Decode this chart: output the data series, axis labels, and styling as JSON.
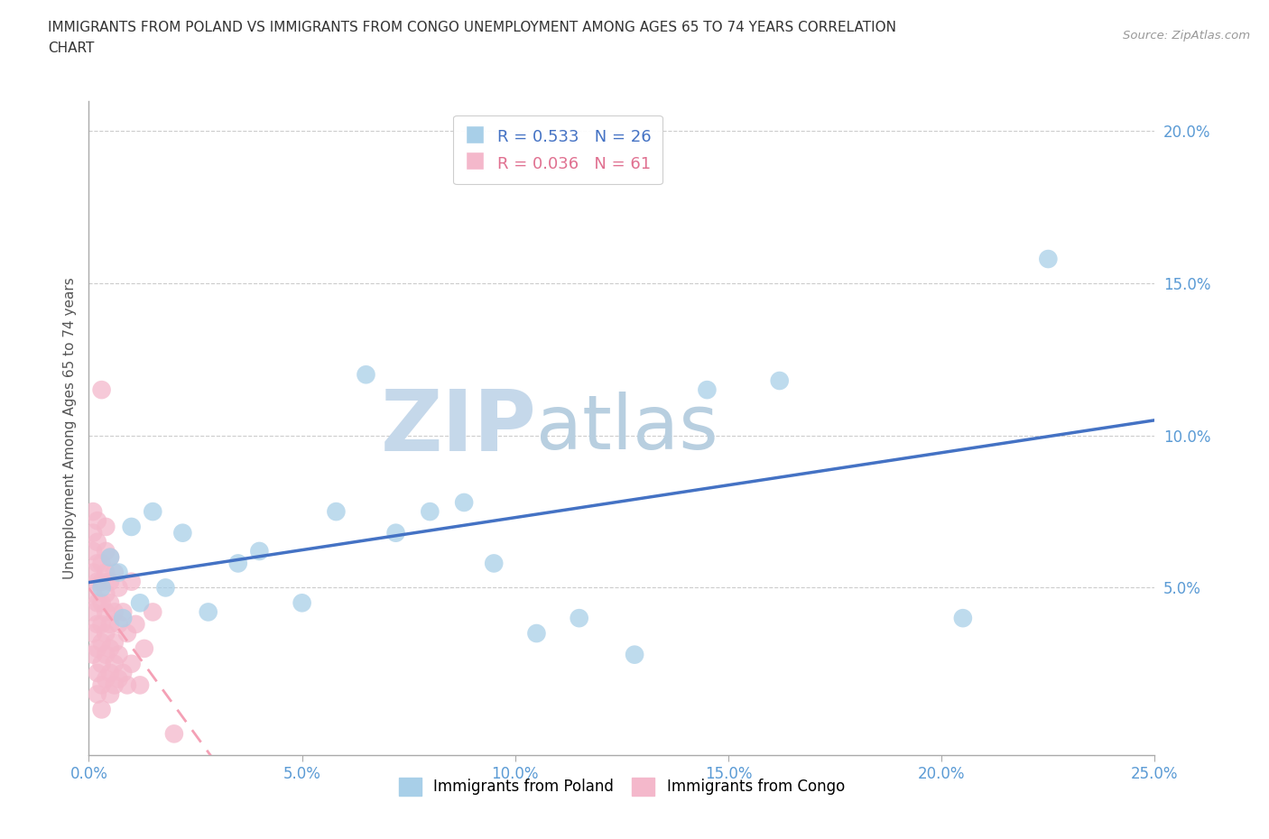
{
  "title_line1": "IMMIGRANTS FROM POLAND VS IMMIGRANTS FROM CONGO UNEMPLOYMENT AMONG AGES 65 TO 74 YEARS CORRELATION",
  "title_line2": "CHART",
  "source": "Source: ZipAtlas.com",
  "ylabel": "Unemployment Among Ages 65 to 74 years",
  "xlim": [
    0,
    0.25
  ],
  "ylim": [
    -0.005,
    0.21
  ],
  "xticks": [
    0.0,
    0.05,
    0.1,
    0.15,
    0.2,
    0.25
  ],
  "yticks": [
    0.05,
    0.1,
    0.15,
    0.2
  ],
  "poland_color": "#a8cfe8",
  "congo_color": "#f4b8cb",
  "poland_line_color": "#4472c4",
  "congo_line_color": "#f4a0b5",
  "tick_color": "#5b9bd5",
  "poland_R": 0.533,
  "poland_N": 26,
  "congo_R": 0.036,
  "congo_N": 61,
  "poland_x": [
    0.003,
    0.005,
    0.007,
    0.008,
    0.01,
    0.012,
    0.015,
    0.018,
    0.022,
    0.028,
    0.035,
    0.04,
    0.05,
    0.058,
    0.065,
    0.072,
    0.08,
    0.088,
    0.095,
    0.105,
    0.115,
    0.128,
    0.145,
    0.162,
    0.205,
    0.225
  ],
  "poland_y": [
    0.05,
    0.06,
    0.055,
    0.04,
    0.07,
    0.045,
    0.075,
    0.05,
    0.068,
    0.042,
    0.058,
    0.062,
    0.045,
    0.075,
    0.12,
    0.068,
    0.075,
    0.078,
    0.058,
    0.035,
    0.04,
    0.028,
    0.115,
    0.118,
    0.04,
    0.158
  ],
  "congo_x": [
    0.001,
    0.001,
    0.001,
    0.001,
    0.001,
    0.001,
    0.001,
    0.001,
    0.002,
    0.002,
    0.002,
    0.002,
    0.002,
    0.002,
    0.002,
    0.002,
    0.002,
    0.003,
    0.003,
    0.003,
    0.003,
    0.003,
    0.003,
    0.003,
    0.003,
    0.003,
    0.004,
    0.004,
    0.004,
    0.004,
    0.004,
    0.004,
    0.004,
    0.004,
    0.005,
    0.005,
    0.005,
    0.005,
    0.005,
    0.005,
    0.005,
    0.006,
    0.006,
    0.006,
    0.006,
    0.006,
    0.007,
    0.007,
    0.007,
    0.007,
    0.008,
    0.008,
    0.009,
    0.009,
    0.01,
    0.01,
    0.011,
    0.012,
    0.013,
    0.015,
    0.02
  ],
  "congo_y": [
    0.028,
    0.035,
    0.042,
    0.048,
    0.055,
    0.062,
    0.068,
    0.075,
    0.015,
    0.022,
    0.03,
    0.038,
    0.045,
    0.052,
    0.058,
    0.065,
    0.072,
    0.01,
    0.018,
    0.025,
    0.032,
    0.038,
    0.045,
    0.052,
    0.058,
    0.115,
    0.02,
    0.028,
    0.035,
    0.042,
    0.048,
    0.055,
    0.062,
    0.07,
    0.015,
    0.022,
    0.03,
    0.038,
    0.045,
    0.052,
    0.06,
    0.018,
    0.025,
    0.032,
    0.042,
    0.055,
    0.02,
    0.028,
    0.038,
    0.05,
    0.022,
    0.042,
    0.018,
    0.035,
    0.025,
    0.052,
    0.038,
    0.018,
    0.03,
    0.042,
    0.002
  ],
  "watermark_zip": "ZIP",
  "watermark_atlas": "atlas",
  "watermark_color_zip": "#c5d8ea",
  "watermark_color_atlas": "#b8cfe0",
  "background_color": "#ffffff",
  "grid_color": "#cccccc"
}
